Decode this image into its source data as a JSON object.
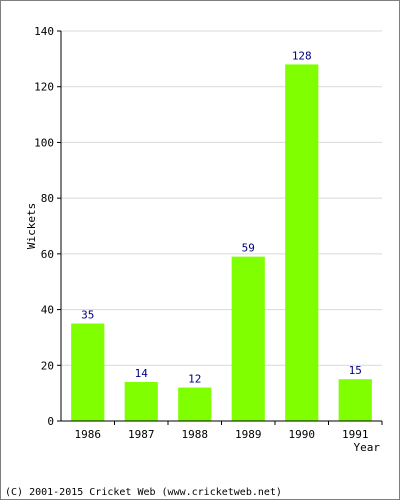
{
  "chart_data": {
    "type": "bar",
    "categories": [
      "1986",
      "1987",
      "1988",
      "1989",
      "1990",
      "1991"
    ],
    "values": [
      35,
      14,
      12,
      59,
      128,
      15
    ],
    "data_labels": [
      "35",
      "14",
      "12",
      "59",
      "128",
      "15"
    ],
    "title": "",
    "xlabel": "Year",
    "ylabel": "Wickets",
    "ylim": [
      0,
      140
    ],
    "yticks": [
      "0",
      "20",
      "40",
      "60",
      "80",
      "100",
      "120",
      "140"
    ],
    "grid": true,
    "bar_color": "#80ff00",
    "label_color": "#000080"
  },
  "footer": {
    "text": "(C) 2001-2015 Cricket Web (www.cricketweb.net)"
  }
}
